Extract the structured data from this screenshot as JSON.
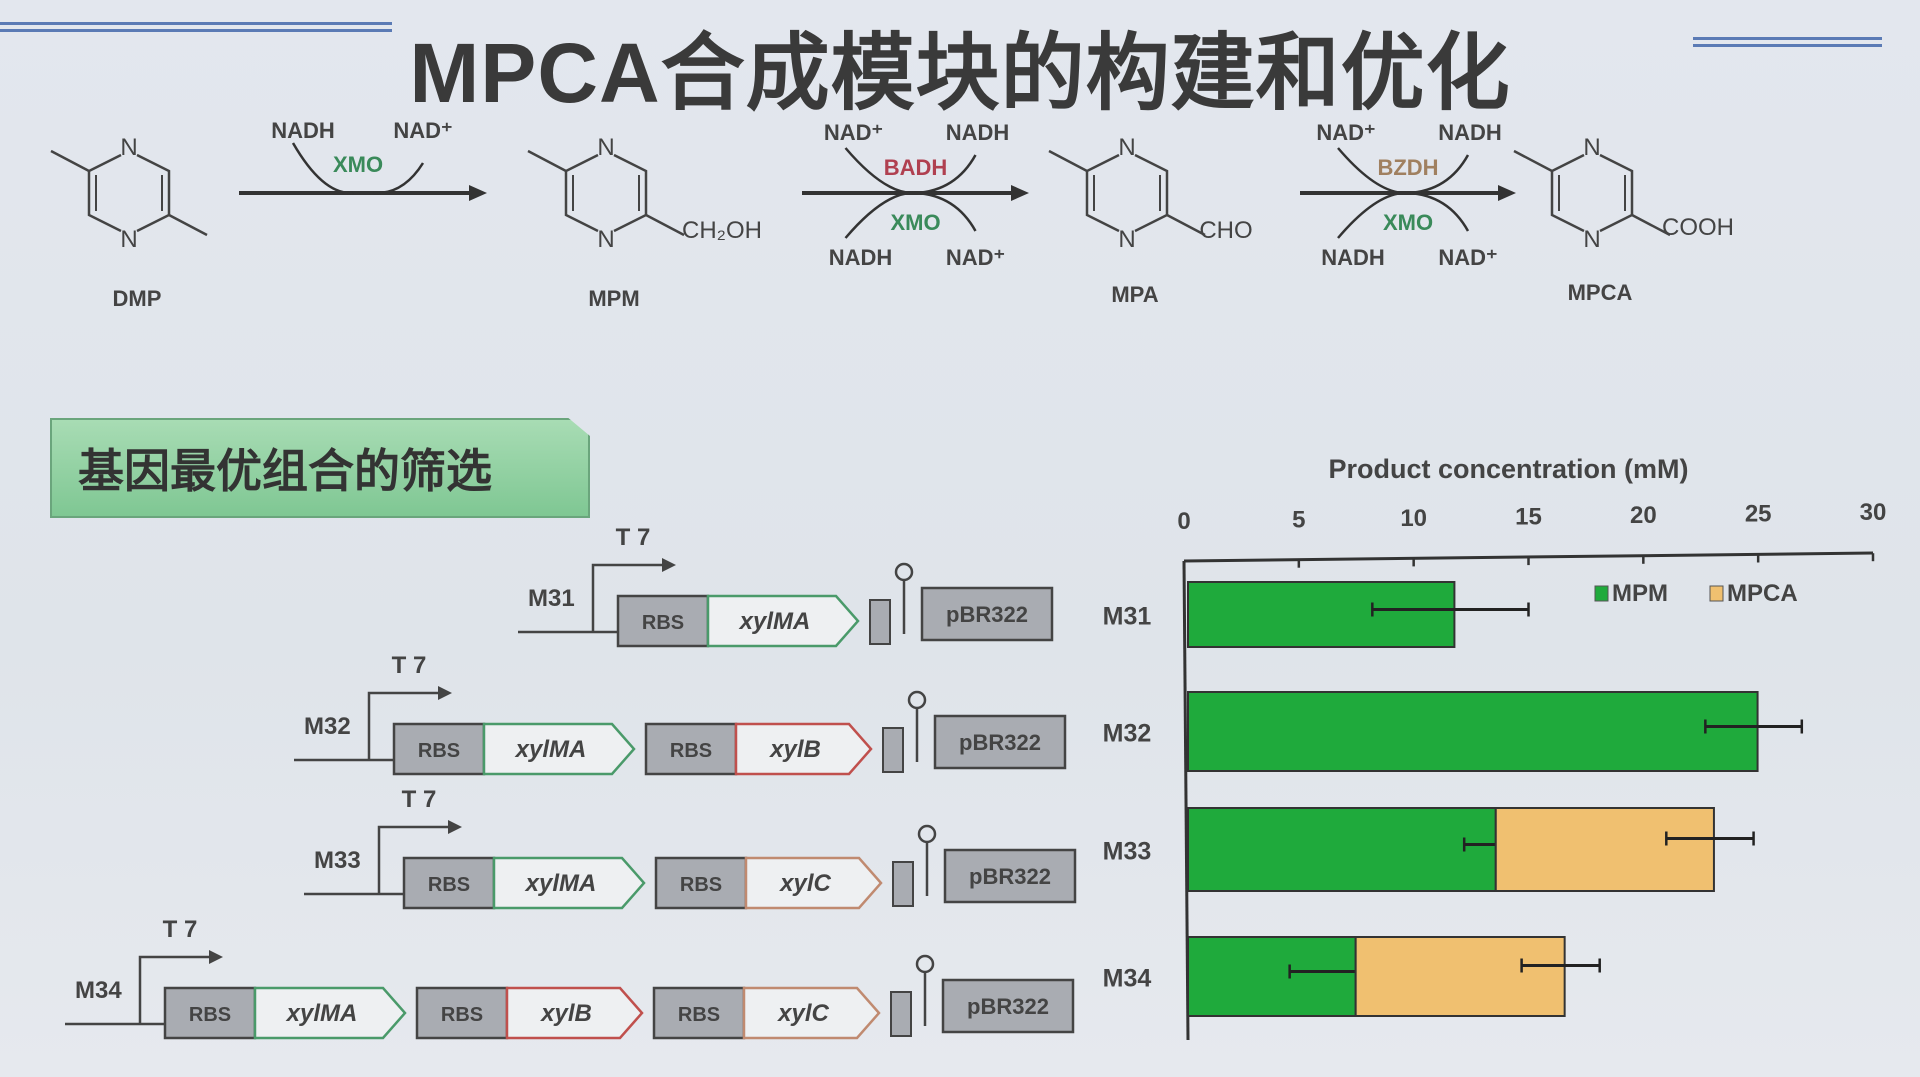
{
  "title": "MPCA合成模块的构建和优化",
  "pathway": {
    "compounds": [
      {
        "name": "DMP",
        "substituent": ""
      },
      {
        "name": "MPM",
        "substituent": "CH₂OH"
      },
      {
        "name": "MPA",
        "substituent": "CHO"
      },
      {
        "name": "MPCA",
        "substituent": "COOH"
      }
    ],
    "ring_atom": "N",
    "steps": [
      {
        "enzyme": "XMO",
        "enzyme_color": "#3a8a5a",
        "cofactor_in": "NADH",
        "cofactor_out": "NAD⁺"
      },
      {
        "enzyme": "BADH",
        "enzyme_color": "#b04050",
        "cofactor_in": "NAD⁺",
        "cofactor_out": "NADH",
        "enzyme2": "XMO",
        "cofactor2_in": "NADH",
        "cofactor2_out": "NAD⁺"
      },
      {
        "enzyme": "BZDH",
        "enzyme_color": "#a08060",
        "cofactor_in": "NAD⁺",
        "cofactor_out": "NADH",
        "enzyme2": "XMO",
        "cofactor2_in": "NADH",
        "cofactor2_out": "NAD⁺"
      }
    ]
  },
  "section_banner": "基因最优组合的筛选",
  "constructs": [
    {
      "name": "M31",
      "promoter": "T 7",
      "genes": [
        {
          "rbs": "RBS",
          "gene": "xylMA",
          "color": "#4a9a6a"
        }
      ],
      "terminator": "terminator",
      "origin": "pBR322"
    },
    {
      "name": "M32",
      "promoter": "T 7",
      "genes": [
        {
          "rbs": "RBS",
          "gene": "xylMA",
          "color": "#4a9a6a"
        },
        {
          "rbs": "RBS",
          "gene": "xylB",
          "color": "#c0504d"
        }
      ],
      "terminator": "terminator",
      "origin": "pBR322"
    },
    {
      "name": "M33",
      "promoter": "T 7",
      "genes": [
        {
          "rbs": "RBS",
          "gene": "xylMA",
          "color": "#4a9a6a"
        },
        {
          "rbs": "RBS",
          "gene": "xylC",
          "color": "#c08a70"
        }
      ],
      "terminator": "terminator",
      "origin": "pBR322"
    },
    {
      "name": "M34",
      "promoter": "T 7",
      "genes": [
        {
          "rbs": "RBS",
          "gene": "xylMA",
          "color": "#4a9a6a"
        },
        {
          "rbs": "RBS",
          "gene": "xylB",
          "color": "#c0504d"
        },
        {
          "rbs": "RBS",
          "gene": "xylC",
          "color": "#c08a70"
        }
      ],
      "terminator": "terminator",
      "origin": "pBR322"
    }
  ],
  "chart_data": {
    "type": "bar",
    "orientation": "horizontal",
    "stacked": true,
    "title": "Product concentration (mM)",
    "categories": [
      "M31",
      "M32",
      "M33",
      "M34"
    ],
    "xlim": [
      0,
      30
    ],
    "ticks": [
      0,
      5,
      10,
      15,
      20,
      25,
      30
    ],
    "legend_position": "top-right",
    "grid": false,
    "series": [
      {
        "name": "MPM",
        "color": "#1faa3c",
        "values": [
          11.6,
          24.8,
          13.4,
          7.3
        ],
        "errors": [
          3.4,
          2.1,
          1.2,
          2.7
        ]
      },
      {
        "name": "MPCA",
        "color": "#f0c070",
        "values": [
          0,
          0,
          9.5,
          9.1
        ],
        "errors": [
          0,
          0,
          1.9,
          1.7
        ]
      }
    ]
  }
}
